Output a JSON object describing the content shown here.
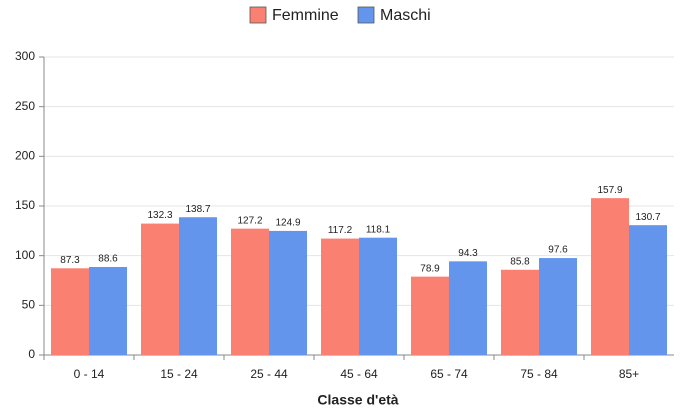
{
  "chart_data": {
    "type": "bar",
    "x_label": "Classe d'età",
    "categories": [
      "0 - 14",
      "15 - 24",
      "25 - 44",
      "45 - 64",
      "65 - 74",
      "75 - 84",
      "85+"
    ],
    "series": [
      {
        "name": "Femmine",
        "color": "#fa8072",
        "values": [
          87.3,
          132.3,
          127.2,
          117.2,
          78.9,
          85.8,
          157.9
        ]
      },
      {
        "name": "Maschi",
        "color": "#6495ed",
        "values": [
          88.6,
          138.7,
          124.9,
          118.1,
          94.3,
          97.6,
          130.7
        ]
      }
    ],
    "ylim": [
      0,
      300
    ],
    "yticks": [
      0,
      50,
      100,
      150,
      200,
      250,
      300
    ],
    "grid": true,
    "legend": "top"
  }
}
